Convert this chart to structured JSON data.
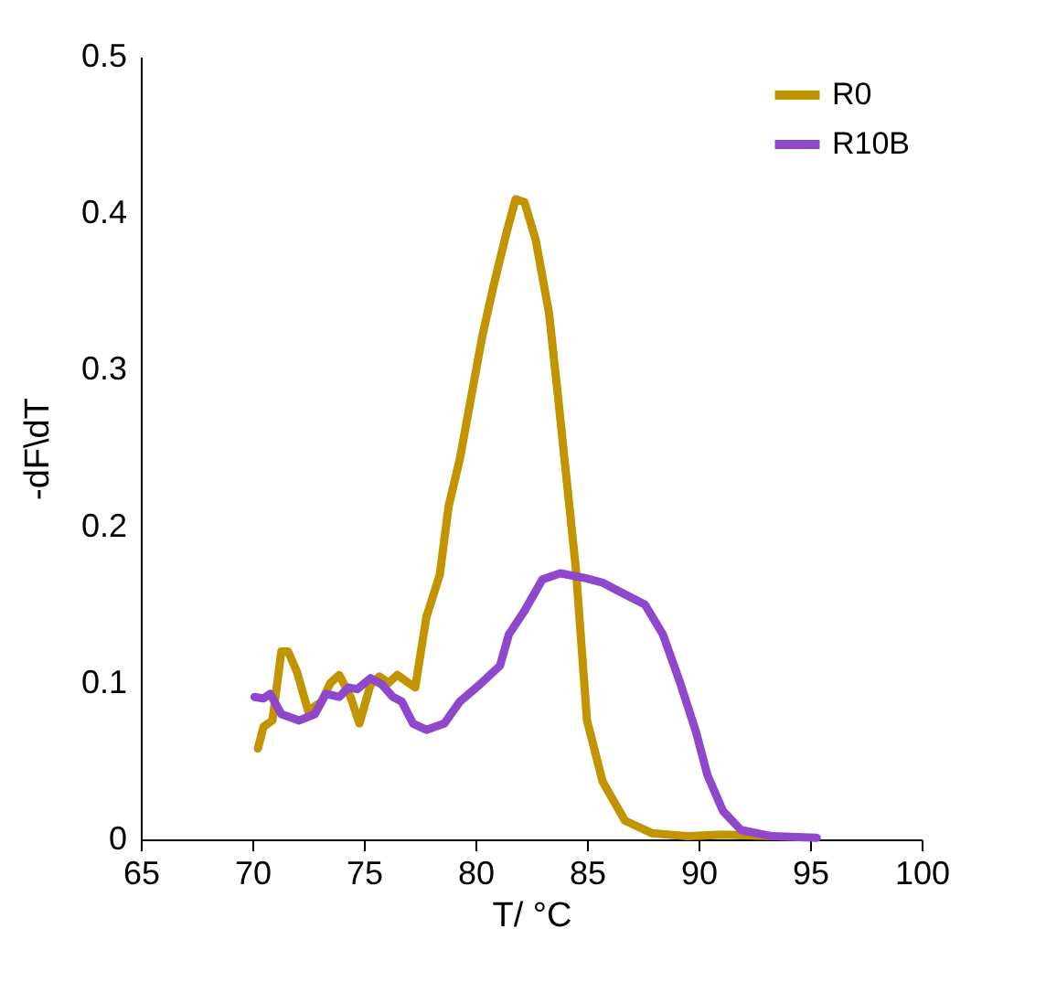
{
  "chart_data": {
    "type": "line",
    "xlabel": "T/ °C",
    "ylabel": "-dF\\dT",
    "xlim": [
      65,
      100
    ],
    "ylim": [
      0,
      0.5
    ],
    "xticks": [
      65,
      70,
      75,
      80,
      85,
      90,
      95,
      100
    ],
    "yticks": [
      0,
      0.1,
      0.2,
      0.3,
      0.4,
      0.5
    ],
    "grid": false,
    "legend": "top right",
    "line_style": "solid",
    "marker": "none",
    "series": [
      {
        "name": "R0",
        "color": "#c29400",
        "x": [
          70.25,
          70.5,
          70.9,
          71.3,
          71.6,
          72.0,
          72.5,
          73.1,
          73.5,
          73.9,
          74.4,
          74.8,
          75.3,
          75.7,
          76.1,
          76.5,
          76.9,
          77.3,
          77.8,
          78.4,
          78.8,
          79.3,
          79.8,
          80.3,
          80.8,
          81.4,
          81.8,
          82.2,
          82.7,
          83.3,
          83.7,
          84.1,
          84.5,
          85.0,
          85.7,
          86.7,
          87.9,
          89.5,
          91.1,
          93.3
        ],
        "values": [
          0.058,
          0.072,
          0.076,
          0.12,
          0.12,
          0.107,
          0.082,
          0.088,
          0.1,
          0.105,
          0.091,
          0.074,
          0.099,
          0.104,
          0.1,
          0.105,
          0.101,
          0.097,
          0.142,
          0.169,
          0.213,
          0.243,
          0.282,
          0.321,
          0.353,
          0.388,
          0.409,
          0.407,
          0.383,
          0.336,
          0.283,
          0.228,
          0.173,
          0.076,
          0.037,
          0.012,
          0.004,
          0.002,
          0.003,
          0.002
        ]
      },
      {
        "name": "R10B",
        "color": "#8f47cc",
        "x": [
          70.1,
          70.5,
          70.8,
          71.3,
          72.1,
          72.8,
          73.3,
          73.9,
          74.3,
          74.7,
          75.3,
          75.8,
          76.3,
          76.7,
          77.2,
          77.8,
          78.6,
          79.3,
          80.2,
          81.1,
          81.5,
          82.2,
          83.0,
          83.8,
          84.9,
          85.7,
          86.5,
          87.6,
          88.4,
          89.2,
          89.9,
          90.4,
          91.1,
          91.9,
          93.3,
          95.3
        ],
        "values": [
          0.091,
          0.09,
          0.093,
          0.08,
          0.076,
          0.08,
          0.093,
          0.091,
          0.097,
          0.096,
          0.103,
          0.099,
          0.091,
          0.088,
          0.074,
          0.07,
          0.074,
          0.088,
          0.099,
          0.111,
          0.131,
          0.146,
          0.166,
          0.17,
          0.167,
          0.164,
          0.158,
          0.15,
          0.131,
          0.099,
          0.068,
          0.041,
          0.018,
          0.006,
          0.002,
          0.001
        ]
      }
    ]
  }
}
